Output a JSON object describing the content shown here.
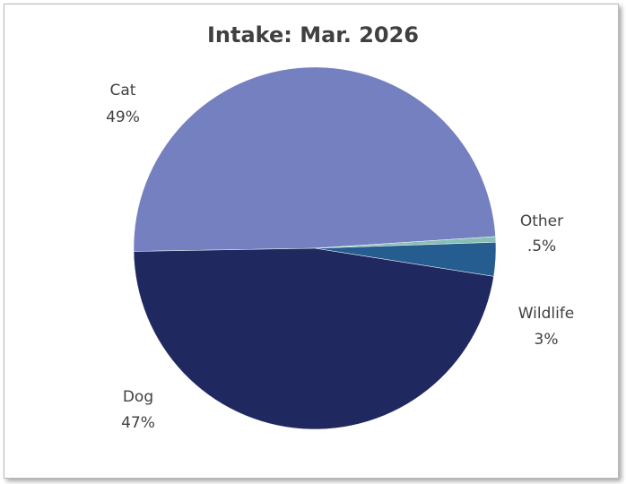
{
  "chart_data": {
    "type": "pie",
    "title": "Intake: Mar. 2026",
    "slices": [
      {
        "name": "Cat",
        "percent": 49,
        "label_value": "49%",
        "color": "#7480bf"
      },
      {
        "name": "Other",
        "percent": 0.5,
        "label_value": ".5%",
        "color": "#86c0b4"
      },
      {
        "name": "Wildlife",
        "percent": 3,
        "label_value": "3%",
        "color": "#265d90"
      },
      {
        "name": "Dog",
        "percent": 47,
        "label_value": "47%",
        "color": "#1f2960"
      }
    ]
  }
}
